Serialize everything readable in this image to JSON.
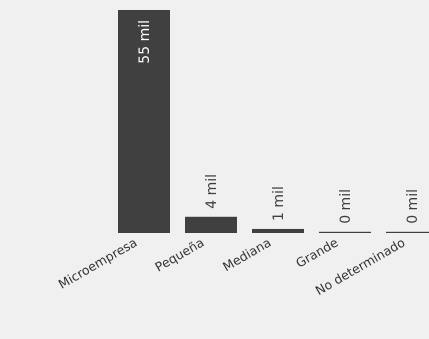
{
  "chart_data": {
    "type": "bar",
    "categories": [
      "Microempresa",
      "Pequeña",
      "Mediana",
      "Grande",
      "No determinado"
    ],
    "values": [
      55,
      4,
      1,
      0,
      0
    ],
    "value_labels": [
      "55 mil",
      "4 mil",
      "1 mil",
      "0 mil",
      "0 mil"
    ],
    "unit": "mil",
    "title": "",
    "xlabel": "",
    "ylabel": "",
    "ylim": [
      0,
      55
    ],
    "grid": false,
    "legend": "none",
    "colors": {
      "bar": "#404040",
      "label_inside": "#ffffff",
      "label_outside": "#404040",
      "background": "#f0f0f0"
    }
  }
}
